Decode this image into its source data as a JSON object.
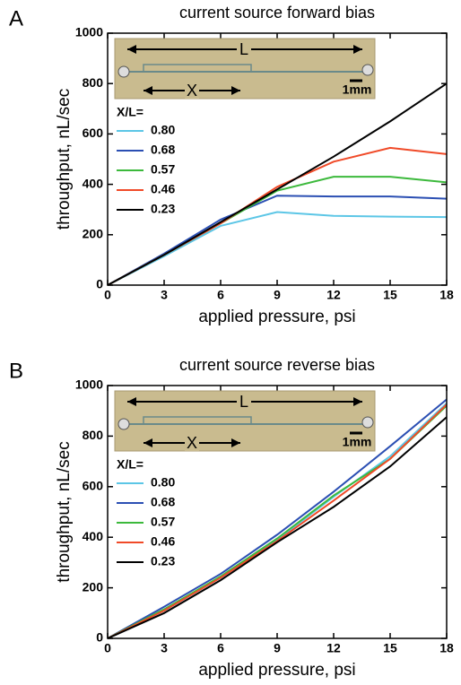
{
  "chart_data": [
    {
      "type": "line",
      "panel_label": "A",
      "title": "current source forward bias",
      "x_label": "applied pressure, psi",
      "y_label": "throughput, nL/sec",
      "x": [
        0,
        3,
        6,
        9,
        12,
        15,
        18
      ],
      "xlim": [
        0,
        18
      ],
      "ylim": [
        0,
        1000
      ],
      "xticks": [
        0,
        3,
        6,
        9,
        12,
        15,
        18
      ],
      "yticks": [
        0,
        200,
        400,
        600,
        800,
        1000
      ],
      "legend_title": "X/L=",
      "inset": {
        "length_label": "L",
        "position_label": "X",
        "scale_label": "1mm"
      },
      "series": [
        {
          "name": "0.80",
          "color": "#5cc6e6",
          "values": [
            0,
            115,
            235,
            290,
            275,
            272,
            270
          ]
        },
        {
          "name": "0.68",
          "color": "#2b4fb3",
          "values": [
            0,
            125,
            260,
            355,
            352,
            352,
            343
          ]
        },
        {
          "name": "0.57",
          "color": "#3cb93c",
          "values": [
            0,
            120,
            245,
            375,
            430,
            430,
            408
          ]
        },
        {
          "name": "0.46",
          "color": "#f04a28",
          "values": [
            0,
            120,
            245,
            390,
            490,
            545,
            520
          ]
        },
        {
          "name": "0.23",
          "color": "#000000",
          "values": [
            0,
            120,
            250,
            380,
            510,
            650,
            800
          ]
        }
      ]
    },
    {
      "type": "line",
      "panel_label": "B",
      "title": "current source reverse bias",
      "x_label": "applied pressure, psi",
      "y_label": "throughput, nL/sec",
      "x": [
        0,
        3,
        6,
        9,
        12,
        15,
        18
      ],
      "xlim": [
        0,
        18
      ],
      "ylim": [
        0,
        1000
      ],
      "xticks": [
        0,
        3,
        6,
        9,
        12,
        15,
        18
      ],
      "yticks": [
        0,
        200,
        400,
        600,
        800,
        1000
      ],
      "legend_title": "X/L=",
      "inset": {
        "length_label": "L",
        "position_label": "X",
        "scale_label": "1mm"
      },
      "series": [
        {
          "name": "0.80",
          "color": "#5cc6e6",
          "values": [
            0,
            110,
            240,
            390,
            560,
            720,
            930
          ]
        },
        {
          "name": "0.68",
          "color": "#2b4fb3",
          "values": [
            0,
            125,
            255,
            410,
            580,
            760,
            945
          ]
        },
        {
          "name": "0.57",
          "color": "#3cb93c",
          "values": [
            0,
            115,
            245,
            395,
            565,
            710,
            920
          ]
        },
        {
          "name": "0.46",
          "color": "#f04a28",
          "values": [
            0,
            110,
            240,
            385,
            545,
            710,
            925
          ]
        },
        {
          "name": "0.23",
          "color": "#000000",
          "values": [
            0,
            100,
            230,
            380,
            520,
            680,
            875
          ]
        }
      ]
    }
  ]
}
